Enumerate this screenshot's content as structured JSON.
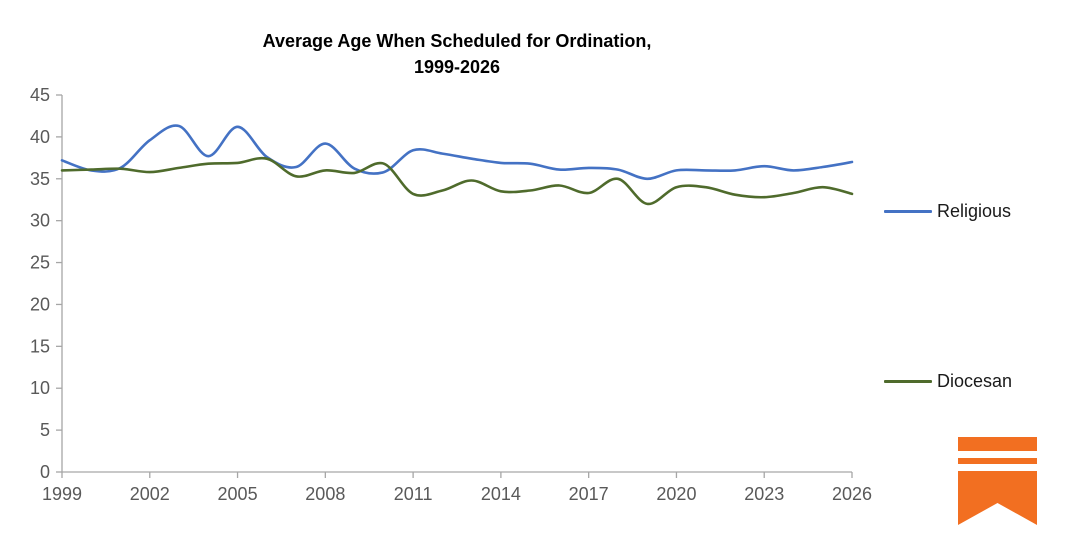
{
  "chart_data": {
    "type": "line",
    "title": "Average Age When Scheduled for Ordination,\n1999-2026",
    "xlabel": "",
    "ylabel": "",
    "ylim": [
      0,
      45
    ],
    "ytick_step": 5,
    "grid": false,
    "legend_position": "right",
    "x": [
      1999,
      2000,
      2001,
      2002,
      2003,
      2004,
      2005,
      2006,
      2007,
      2008,
      2009,
      2010,
      2011,
      2012,
      2013,
      2014,
      2015,
      2016,
      2017,
      2018,
      2019,
      2020,
      2021,
      2022,
      2023,
      2024,
      2025,
      2026
    ],
    "xticks": [
      1999,
      2002,
      2005,
      2008,
      2011,
      2014,
      2017,
      2020,
      2023,
      2026
    ],
    "series": [
      {
        "name": "Religious",
        "color": "#4472C4",
        "values": [
          37.2,
          36.0,
          36.3,
          39.6,
          41.3,
          37.7,
          41.2,
          37.6,
          36.4,
          39.2,
          36.2,
          35.8,
          38.4,
          38.0,
          37.4,
          36.9,
          36.8,
          36.1,
          36.3,
          36.1,
          35.0,
          36.0,
          36.0,
          36.0,
          36.5,
          36.0,
          36.4,
          37.0
        ]
      },
      {
        "name": "Diocesan",
        "color": "#4F6B2C",
        "values": [
          36.0,
          36.1,
          36.2,
          35.8,
          36.3,
          36.8,
          36.9,
          37.4,
          35.3,
          36.0,
          35.7,
          36.8,
          33.2,
          33.6,
          34.8,
          33.5,
          33.6,
          34.2,
          33.3,
          35.0,
          32.0,
          34.0,
          34.0,
          33.1,
          32.8,
          33.3,
          34.0,
          33.2
        ]
      }
    ],
    "axis_color": "#A6A6A6",
    "tick_label_color": "#595959",
    "tick_label_size": 18
  },
  "logo": {
    "name": "ribbon-bookmark-logo",
    "color": "#F26F21"
  }
}
